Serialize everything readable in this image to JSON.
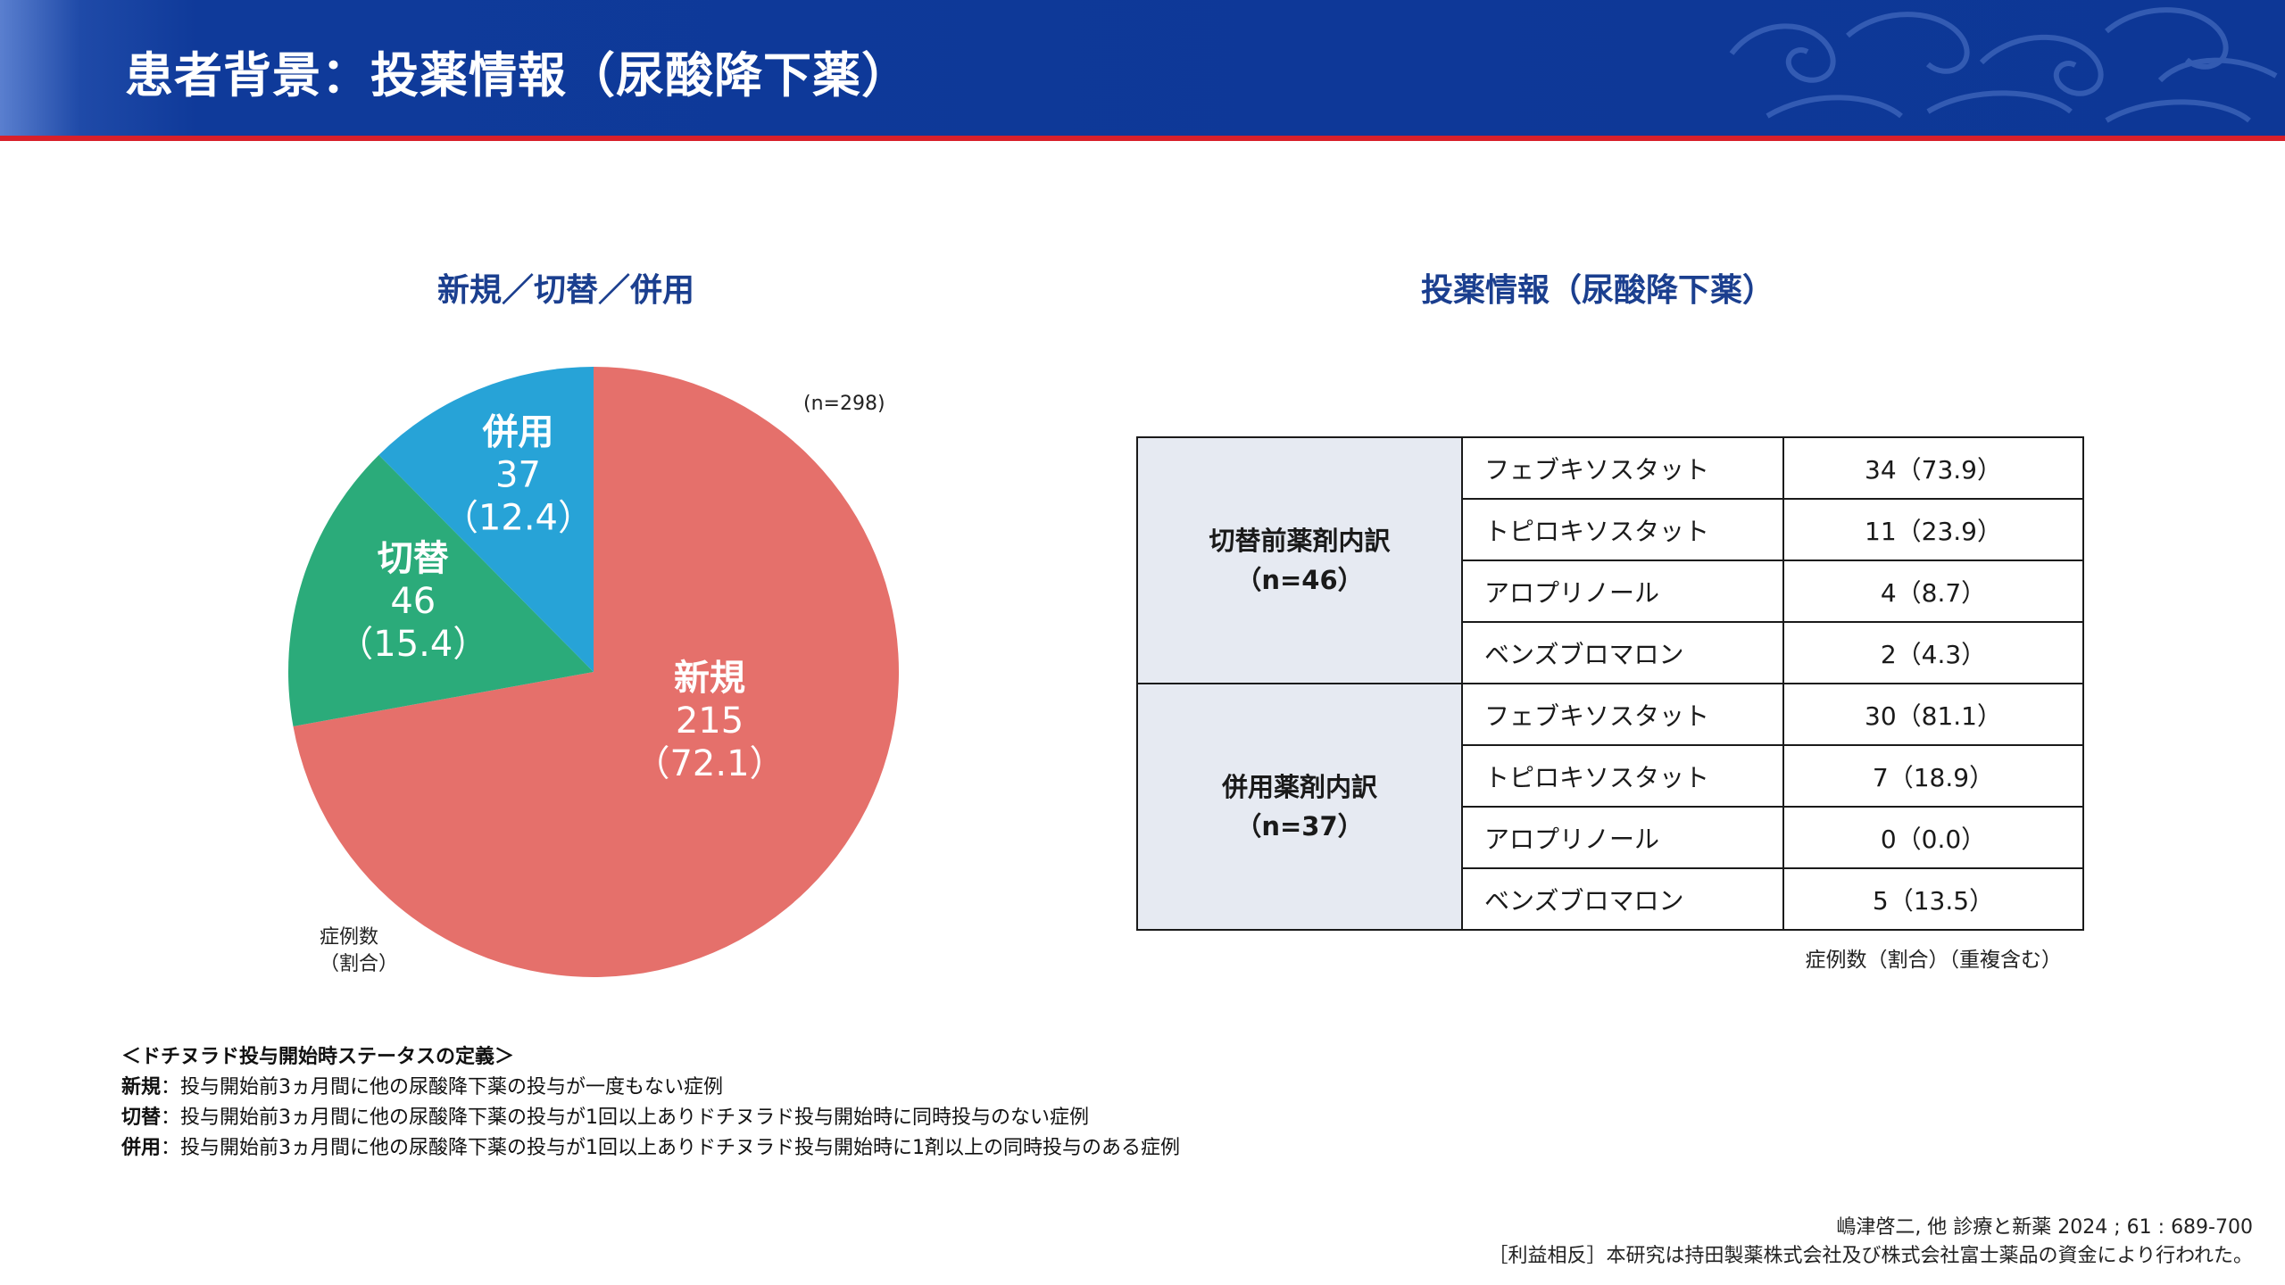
{
  "header": {
    "title": "患者背景：投薬情報（尿酸降下薬）"
  },
  "colors": {
    "header_bg": "#0d3796",
    "header_underline": "#d8202a",
    "title_blue": "#1b3f8f",
    "new": "#e5706b",
    "switch": "#2bab7a",
    "combo": "#27a3d7",
    "group_bg": "#e6eaf2"
  },
  "left": {
    "title": "新規／切替／併用",
    "n_label": "(n=298)",
    "caption": [
      "症例数",
      "（割合）"
    ]
  },
  "chart_data": {
    "type": "pie",
    "title": "新規／切替／併用",
    "n": 298,
    "slices": [
      {
        "name": "新規",
        "count": 215,
        "percent": 72.1,
        "count_label": "215",
        "percent_label": "（72.1）",
        "color": "#e5706b"
      },
      {
        "name": "切替",
        "count": 46,
        "percent": 15.4,
        "count_label": "46",
        "percent_label": "（15.4）",
        "color": "#2bab7a"
      },
      {
        "name": "併用",
        "count": 37,
        "percent": 12.4,
        "count_label": "37",
        "percent_label": "（12.4）",
        "color": "#27a3d7"
      }
    ]
  },
  "right": {
    "title": "投薬情報（尿酸降下薬）",
    "groups": [
      {
        "label": "切替前薬剤内訳",
        "n": "（n=46）",
        "rows": [
          {
            "drug": "フェブキソスタット",
            "value": "34（73.9）"
          },
          {
            "drug": "トピロキソスタット",
            "value": "11（23.9）"
          },
          {
            "drug": "アロプリノール",
            "value": "4（8.7）"
          },
          {
            "drug": "ベンズブロマロン",
            "value": "2（4.3）"
          }
        ]
      },
      {
        "label": "併用薬剤内訳",
        "n": "（n=37）",
        "rows": [
          {
            "drug": "フェブキソスタット",
            "value": "30（81.1）"
          },
          {
            "drug": "トピロキソスタット",
            "value": "7（18.9）"
          },
          {
            "drug": "アロプリノール",
            "value": "0（0.0）"
          },
          {
            "drug": "ベンズブロマロン",
            "value": "5（13.5）"
          }
        ]
      }
    ],
    "note": "症例数（割合）（重複含む）"
  },
  "definitions": {
    "title": "＜ドチヌラド投与開始時ステータスの定義＞",
    "items": [
      {
        "term": "新規",
        "text": "：投与開始前3ヵ月間に他の尿酸降下薬の投与が一度もない症例"
      },
      {
        "term": "切替",
        "text": "：投与開始前3ヵ月間に他の尿酸降下薬の投与が1回以上ありドチヌラド投与開始時に同時投与のない症例"
      },
      {
        "term": "併用",
        "text": "：投与開始前3ヵ月間に他の尿酸降下薬の投与が1回以上ありドチヌラド投与開始時に1剤以上の同時投与のある症例"
      }
    ]
  },
  "references": {
    "citation": "嶋津啓二, 他  診療と新薬  2024 ; 61 : 689-700",
    "coi": "［利益相反］本研究は持田製薬株式会社及び株式会社富士薬品の資金により行われた。"
  }
}
